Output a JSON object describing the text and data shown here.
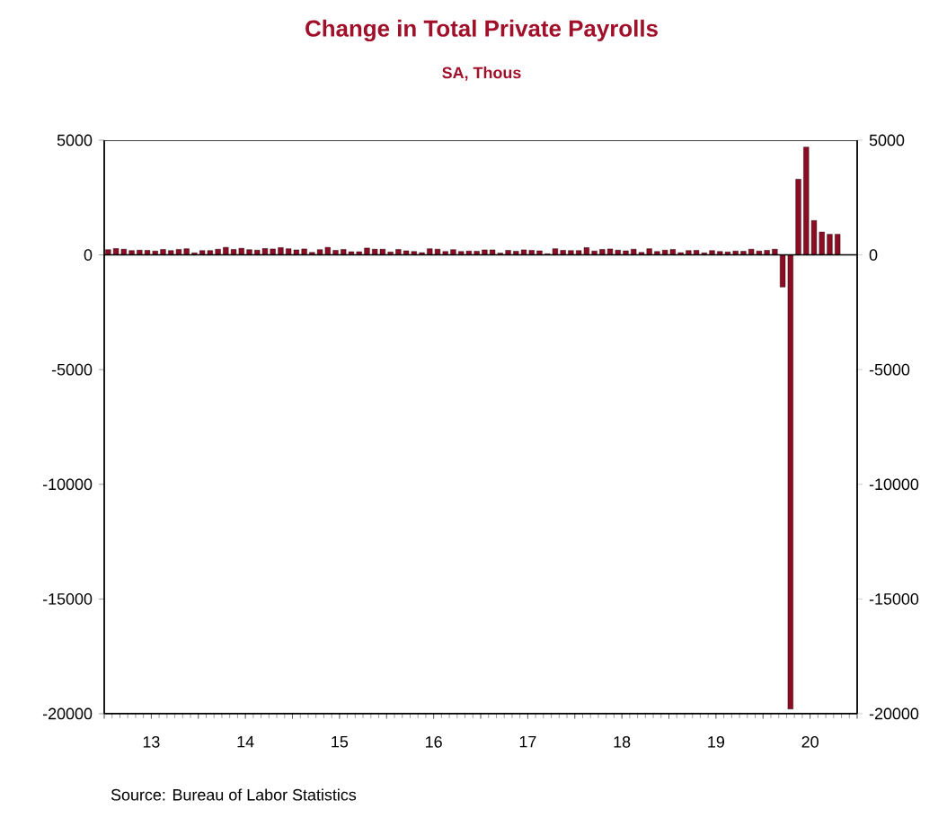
{
  "chart_data": {
    "type": "bar",
    "title": "Change in Total Private Payrolls",
    "subtitle": "SA, Thous",
    "x": [
      "2013-01",
      "2013-02",
      "2013-03",
      "2013-04",
      "2013-05",
      "2013-06",
      "2013-07",
      "2013-08",
      "2013-09",
      "2013-10",
      "2013-11",
      "2013-12",
      "2014-01",
      "2014-02",
      "2014-03",
      "2014-04",
      "2014-05",
      "2014-06",
      "2014-07",
      "2014-08",
      "2014-09",
      "2014-10",
      "2014-11",
      "2014-12",
      "2015-01",
      "2015-02",
      "2015-03",
      "2015-04",
      "2015-05",
      "2015-06",
      "2015-07",
      "2015-08",
      "2015-09",
      "2015-10",
      "2015-11",
      "2015-12",
      "2016-01",
      "2016-02",
      "2016-03",
      "2016-04",
      "2016-05",
      "2016-06",
      "2016-07",
      "2016-08",
      "2016-09",
      "2016-10",
      "2016-11",
      "2016-12",
      "2017-01",
      "2017-02",
      "2017-03",
      "2017-04",
      "2017-05",
      "2017-06",
      "2017-07",
      "2017-08",
      "2017-09",
      "2017-10",
      "2017-11",
      "2017-12",
      "2018-01",
      "2018-02",
      "2018-03",
      "2018-04",
      "2018-05",
      "2018-06",
      "2018-07",
      "2018-08",
      "2018-09",
      "2018-10",
      "2018-11",
      "2018-12",
      "2019-01",
      "2019-02",
      "2019-03",
      "2019-04",
      "2019-05",
      "2019-06",
      "2019-07",
      "2019-08",
      "2019-09",
      "2019-10",
      "2019-11",
      "2019-12",
      "2020-01",
      "2020-02",
      "2020-03",
      "2020-04",
      "2020-05",
      "2020-06",
      "2020-07",
      "2020-08",
      "2020-09",
      "2020-10"
    ],
    "values": [
      230,
      280,
      250,
      190,
      210,
      200,
      170,
      240,
      190,
      240,
      270,
      90,
      190,
      190,
      250,
      330,
      240,
      290,
      230,
      210,
      280,
      260,
      320,
      270,
      220,
      260,
      110,
      230,
      330,
      200,
      240,
      140,
      140,
      300,
      250,
      250,
      130,
      240,
      180,
      150,
      100,
      270,
      250,
      150,
      230,
      150,
      170,
      160,
      220,
      220,
      80,
      200,
      160,
      220,
      200,
      180,
      50,
      270,
      200,
      190,
      190,
      320,
      170,
      240,
      260,
      210,
      180,
      250,
      110,
      270,
      150,
      210,
      240,
      100,
      190,
      200,
      90,
      190,
      150,
      130,
      170,
      160,
      250,
      170,
      200,
      250,
      -1400,
      -19800,
      3300,
      4700,
      1500,
      1000,
      900,
      900
    ],
    "color": "#8c0c24",
    "xlim": [
      "2013-01",
      "2021-01"
    ],
    "xticks": [
      {
        "value": "2013-01",
        "label": null
      },
      {
        "value": "2013-07",
        "label": "13"
      },
      {
        "value": "2014-01",
        "label": null
      },
      {
        "value": "2014-07",
        "label": "14"
      },
      {
        "value": "2015-01",
        "label": null
      },
      {
        "value": "2015-07",
        "label": "15"
      },
      {
        "value": "2016-01",
        "label": null
      },
      {
        "value": "2016-07",
        "label": "16"
      },
      {
        "value": "2017-01",
        "label": null
      },
      {
        "value": "2017-07",
        "label": "17"
      },
      {
        "value": "2018-01",
        "label": null
      },
      {
        "value": "2018-07",
        "label": "18"
      },
      {
        "value": "2019-01",
        "label": null
      },
      {
        "value": "2019-07",
        "label": "19"
      },
      {
        "value": "2020-01",
        "label": null
      },
      {
        "value": "2020-07",
        "label": "20"
      },
      {
        "value": "2021-01",
        "label": null
      }
    ],
    "ylim": [
      -20000,
      5000
    ],
    "yticks": [
      -20000,
      -15000,
      -10000,
      -5000,
      0,
      5000
    ],
    "y2lim": [
      -20000,
      5000
    ],
    "y2ticks": [
      -20000,
      -15000,
      -10000,
      -5000,
      0,
      5000
    ],
    "annotations": [
      "Source:  Bureau of Labor Statistics"
    ]
  }
}
